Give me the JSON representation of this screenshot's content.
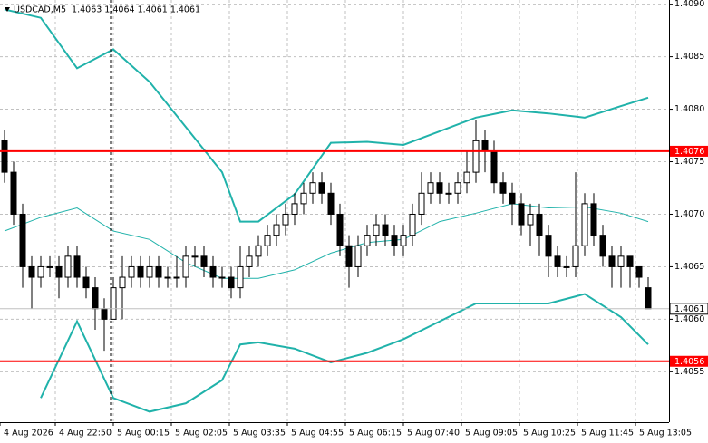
{
  "chart_data": {
    "type": "candlestick",
    "title": "USDCAD,M5  1.4063 1.4064 1.4061 1.4061",
    "x_labels": [
      "4 Aug 2026",
      "4 Aug 22:50",
      "5 Aug 00:15",
      "5 Aug 02:05",
      "5 Aug 03:35",
      "5 Aug 04:55",
      "5 Aug 06:15",
      "5 Aug 07:40",
      "5 Aug 09:05",
      "5 Aug 10:25",
      "5 Aug 11:45",
      "5 Aug 13:05"
    ],
    "open": [
      1.4077,
      1.4074,
      1.407,
      1.4065,
      1.4064,
      1.4065,
      1.4065,
      1.4064,
      1.4066,
      1.4064,
      1.4063,
      1.4061,
      1.406,
      1.4063,
      1.4064,
      1.4065,
      1.4064,
      1.4065,
      1.4064,
      1.4064,
      1.4064,
      1.4066,
      1.4066,
      1.4065,
      1.4064,
      1.4064,
      1.4063,
      1.4065,
      1.4066,
      1.4067,
      1.4068,
      1.4069,
      1.407,
      1.4071,
      1.4072,
      1.4073,
      1.4072,
      1.407,
      1.4067,
      1.4065,
      1.4067,
      1.4068,
      1.4069,
      1.4068,
      1.4067,
      1.4068,
      1.407,
      1.4072,
      1.4073,
      1.4072,
      1.4072,
      1.4073,
      1.4074,
      1.4077,
      1.4076,
      1.4073,
      1.4072,
      1.4071,
      1.4069,
      1.407,
      1.4068,
      1.4066,
      1.4065,
      1.4065,
      1.4067,
      1.4071,
      1.4068,
      1.4066,
      1.4065,
      1.4066,
      1.4065,
      1.4063
    ],
    "high": [
      1.4078,
      1.4075,
      1.4071,
      1.4066,
      1.4066,
      1.4066,
      1.4066,
      1.4067,
      1.4067,
      1.4065,
      1.4064,
      1.4062,
      1.4064,
      1.4066,
      1.4066,
      1.4066,
      1.4066,
      1.4066,
      1.4065,
      1.4066,
      1.4067,
      1.4067,
      1.4067,
      1.4066,
      1.4065,
      1.4065,
      1.4067,
      1.4067,
      1.4068,
      1.4069,
      1.407,
      1.4071,
      1.4072,
      1.4073,
      1.4074,
      1.4074,
      1.4073,
      1.4071,
      1.4068,
      1.4068,
      1.4069,
      1.407,
      1.407,
      1.4069,
      1.4069,
      1.4071,
      1.4074,
      1.4074,
      1.4074,
      1.4073,
      1.4074,
      1.4076,
      1.4079,
      1.4078,
      1.4077,
      1.4074,
      1.4073,
      1.4072,
      1.4071,
      1.4071,
      1.4069,
      1.4067,
      1.4066,
      1.4074,
      1.4072,
      1.4072,
      1.4069,
      1.4067,
      1.4067,
      1.4066,
      1.4065,
      1.4064
    ],
    "low": [
      1.4073,
      1.4069,
      1.4063,
      1.4061,
      1.4063,
      1.4064,
      1.4062,
      1.4063,
      1.4063,
      1.4062,
      1.4059,
      1.4057,
      1.406,
      1.406,
      1.4063,
      1.4063,
      1.4063,
      1.4063,
      1.4063,
      1.4063,
      1.4063,
      1.4065,
      1.4064,
      1.4063,
      1.4063,
      1.4062,
      1.4062,
      1.4064,
      1.4065,
      1.4066,
      1.4067,
      1.4068,
      1.4069,
      1.407,
      1.4071,
      1.4071,
      1.4069,
      1.4066,
      1.4063,
      1.4064,
      1.4066,
      1.4067,
      1.4067,
      1.4066,
      1.4066,
      1.4067,
      1.4069,
      1.4071,
      1.4071,
      1.4071,
      1.4071,
      1.4072,
      1.4073,
      1.4074,
      1.4072,
      1.4071,
      1.4069,
      1.4068,
      1.4067,
      1.4066,
      1.4064,
      1.4064,
      1.4064,
      1.4064,
      1.4066,
      1.4067,
      1.4065,
      1.4063,
      1.4063,
      1.4063,
      1.4063,
      1.4061
    ],
    "close": [
      1.4074,
      1.407,
      1.4065,
      1.4064,
      1.4065,
      1.4065,
      1.4064,
      1.4066,
      1.4064,
      1.4063,
      1.4061,
      1.406,
      1.4063,
      1.4064,
      1.4065,
      1.4064,
      1.4065,
      1.4064,
      1.4064,
      1.4064,
      1.4066,
      1.4066,
      1.4065,
      1.4064,
      1.4064,
      1.4063,
      1.4065,
      1.4066,
      1.4067,
      1.4068,
      1.4069,
      1.407,
      1.4071,
      1.4072,
      1.4073,
      1.4072,
      1.407,
      1.4067,
      1.4065,
      1.4067,
      1.4068,
      1.4069,
      1.4068,
      1.4067,
      1.4068,
      1.407,
      1.4072,
      1.4073,
      1.4072,
      1.4072,
      1.4073,
      1.4074,
      1.4077,
      1.4076,
      1.4073,
      1.4072,
      1.4071,
      1.4069,
      1.407,
      1.4068,
      1.4066,
      1.4065,
      1.4065,
      1.4067,
      1.4071,
      1.4068,
      1.4066,
      1.4065,
      1.4066,
      1.4065,
      1.4064,
      1.4061
    ],
    "candle_color": "#000000",
    "bull_fill": "#ffffff",
    "bands": {
      "color": "#20b2aa",
      "x": [
        0,
        4,
        8,
        12,
        16,
        20,
        24,
        26,
        28,
        32,
        36,
        40,
        44,
        48,
        52,
        56,
        60,
        64,
        68,
        71
      ],
      "upper": [
        1.40895,
        1.40887,
        1.40839,
        1.40857,
        1.40826,
        1.40783,
        1.4074,
        1.40693,
        1.40693,
        1.40719,
        1.40768,
        1.40769,
        1.40766,
        1.40779,
        1.40792,
        1.40799,
        1.40796,
        1.40792,
        1.40803,
        1.40811
      ],
      "middle": [
        1.40684,
        1.40697,
        1.40706,
        1.40684,
        1.40676,
        1.40654,
        1.40639,
        1.40639,
        1.40639,
        1.40647,
        1.40663,
        1.40673,
        1.40676,
        1.40693,
        1.40701,
        1.4071,
        1.40706,
        1.40707,
        1.40701,
        1.40693
      ],
      "lower": [
        null,
        1.40525,
        1.40598,
        1.40525,
        1.40512,
        1.4052,
        1.40542,
        1.40576,
        1.40578,
        1.40572,
        1.40559,
        1.40568,
        1.40581,
        1.40598,
        1.40615,
        1.40615,
        1.40615,
        1.40624,
        1.40602,
        1.40576
      ]
    },
    "hlines": [
      1.4076,
      1.4056
    ],
    "hline_color": "#ff0000",
    "last_price": 1.4061,
    "ylim": [
      1.40502,
      1.40904
    ],
    "yticks": [
      1.4055,
      {
        "value": 1.406,
        "label": "1.4060"
      },
      1.4065,
      {
        "value": 1.407,
        "label": "1.4070"
      },
      1.4075,
      {
        "value": 1.408,
        "label": "1.4080"
      },
      1.4085,
      {
        "value": 1.409,
        "label": "1.4090"
      }
    ],
    "grid": true
  }
}
